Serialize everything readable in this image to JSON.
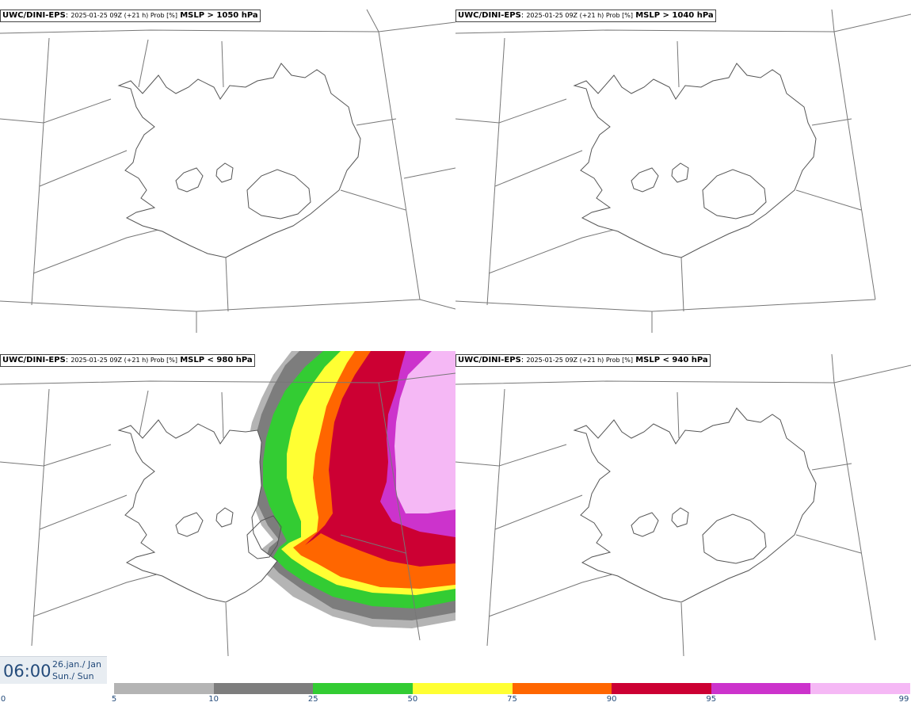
{
  "panels": [
    {
      "model": "UWC/DINI-EPS",
      "meta": "2025-01-25 09Z (+21 h) Prob [%]",
      "variable": "MSLP > 1050 hPa"
    },
    {
      "model": "UWC/DINI-EPS",
      "meta": "2025-01-25 09Z (+21 h) Prob [%]",
      "variable": "MSLP > 1040 hPa"
    },
    {
      "model": "UWC/DINI-EPS",
      "meta": "2025-01-25 09Z (+21 h) Prob [%]",
      "variable": "MSLP < 980 hPa"
    },
    {
      "model": "UWC/DINI-EPS",
      "meta": "2025-01-25 09Z (+21 h) Prob [%]",
      "variable": "MSLP < 940 hPa"
    }
  ],
  "valid_time": {
    "time": "06:00",
    "date": "26.jan./ Jan",
    "day": "Sun./ Sun"
  },
  "colorbar": {
    "ticks": [
      "0",
      "5",
      "10",
      "25",
      "50",
      "75",
      "90",
      "95",
      "99"
    ],
    "colors": [
      "#b4b4b4",
      "#7d7d7d",
      "#33cc33",
      "#ffff33",
      "#ff6600",
      "#cc0033",
      "#cc33cc",
      "#f5b8f5"
    ]
  }
}
